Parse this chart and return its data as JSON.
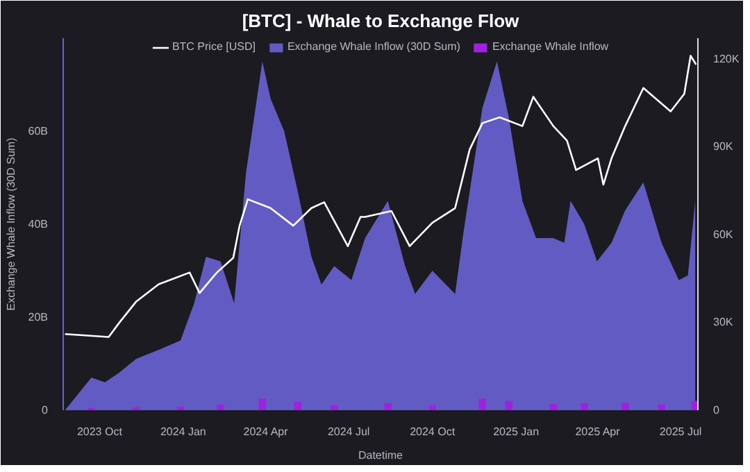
{
  "chart_data": {
    "type": "area",
    "title": "[BTC] - Whale to Exchange Flow",
    "xlabel": "Datetime",
    "ylabel": "Exchange Whale Inflow (30D Sum)",
    "xlim": [
      "2023-08-22",
      "2025-07-20"
    ],
    "xticks": [
      {
        "value": "2023-10-01",
        "label": "2023 Oct"
      },
      {
        "value": "2024-01-01",
        "label": "2024 Jan"
      },
      {
        "value": "2024-04-01",
        "label": "2024 Apr"
      },
      {
        "value": "2024-07-01",
        "label": "2024 Jul"
      },
      {
        "value": "2024-10-01",
        "label": "2024 Oct"
      },
      {
        "value": "2025-01-01",
        "label": "2025 Jan"
      },
      {
        "value": "2025-04-01",
        "label": "2025 Apr"
      },
      {
        "value": "2025-07-01",
        "label": "2025 Jul"
      }
    ],
    "ylim": [
      0,
      80
    ],
    "yticks": [
      0,
      {
        "value": 20,
        "label": "20B"
      },
      {
        "value": 40,
        "label": "40B"
      },
      {
        "value": 60,
        "label": "60B"
      }
    ],
    "y2lim": [
      0,
      127000
    ],
    "y2ticks": [
      0,
      {
        "value": 30000,
        "label": "30K"
      },
      {
        "value": 60000,
        "label": "60K"
      },
      {
        "value": 90000,
        "label": "90K"
      },
      {
        "value": 120000,
        "label": "120K"
      }
    ],
    "grid": false,
    "legend": "top",
    "series": [
      {
        "name": "BTC Price [USD]",
        "type": "line",
        "axis": "y2",
        "color": "#ffffff",
        "x": [
          "2023-08-24",
          "2023-10-11",
          "2023-10-23",
          "2023-11-10",
          "2023-12-05",
          "2024-01-08",
          "2024-01-19",
          "2024-02-07",
          "2024-02-25",
          "2024-03-03",
          "2024-03-12",
          "2024-04-06",
          "2024-05-01",
          "2024-05-21",
          "2024-06-04",
          "2024-06-30",
          "2024-07-14",
          "2024-07-19",
          "2024-08-17",
          "2024-09-06",
          "2024-10-01",
          "2024-10-26",
          "2024-11-11",
          "2024-11-25",
          "2024-12-14",
          "2025-01-08",
          "2025-01-20",
          "2025-02-11",
          "2025-02-26",
          "2025-03-08",
          "2025-04-01",
          "2025-04-07",
          "2025-04-16",
          "2025-05-01",
          "2025-05-21",
          "2025-06-20",
          "2025-07-05",
          "2025-07-12",
          "2025-07-18"
        ],
        "values": [
          26000,
          25000,
          30000,
          37000,
          43000,
          47000,
          40000,
          47000,
          52000,
          63000,
          72000,
          69000,
          63000,
          69000,
          71000,
          56000,
          66000,
          66000,
          68000,
          56000,
          64000,
          69000,
          89000,
          98000,
          100000,
          97000,
          107000,
          97000,
          92000,
          82000,
          86000,
          77000,
          86000,
          97000,
          110000,
          102000,
          108000,
          121000,
          118000
        ]
      },
      {
        "name": "Exchange Whale Inflow (30D Sum)",
        "color": "#6b63d6",
        "x": [
          "2023-08-24",
          "2023-09-22",
          "2023-10-07",
          "2023-10-22",
          "2023-11-10",
          "2023-12-05",
          "2023-12-29",
          "2024-01-13",
          "2024-01-26",
          "2024-02-11",
          "2024-02-26",
          "2024-03-10",
          "2024-03-28",
          "2024-04-06",
          "2024-04-21",
          "2024-05-06",
          "2024-05-21",
          "2024-06-01",
          "2024-06-15",
          "2024-07-04",
          "2024-07-19",
          "2024-08-13",
          "2024-09-01",
          "2024-09-12",
          "2024-10-01",
          "2024-10-26",
          "2024-11-04",
          "2024-11-25",
          "2024-12-11",
          "2024-12-24",
          "2025-01-08",
          "2025-01-23",
          "2025-02-11",
          "2025-02-23",
          "2025-03-02",
          "2025-03-17",
          "2025-03-31",
          "2025-04-16",
          "2025-05-01",
          "2025-05-21",
          "2025-06-10",
          "2025-06-29",
          "2025-07-09",
          "2025-07-17"
        ],
        "values": [
          0,
          7,
          6,
          8,
          11,
          13,
          15,
          23,
          33,
          32,
          23,
          51,
          75,
          67,
          60,
          47,
          33,
          27,
          31,
          28,
          37,
          45,
          31,
          25,
          30,
          25,
          38,
          65,
          75,
          63,
          45,
          37,
          37,
          36,
          45,
          40,
          32,
          36,
          43,
          49,
          36,
          28,
          29,
          45
        ]
      },
      {
        "name": "Exchange Whale Inflow",
        "type": "bar",
        "color": "#a020e0",
        "x": [
          "2023-09-22",
          "2023-11-10",
          "2023-12-29",
          "2024-02-11",
          "2024-03-28",
          "2024-05-06",
          "2024-06-15",
          "2024-08-13",
          "2024-10-01",
          "2024-11-25",
          "2024-12-24",
          "2025-02-11",
          "2025-03-17",
          "2025-05-01",
          "2025-06-10",
          "2025-07-17"
        ],
        "values": [
          0.5,
          0.6,
          0.8,
          1.2,
          2.5,
          1.8,
          1.0,
          1.5,
          1.0,
          2.5,
          2.0,
          1.3,
          1.5,
          1.6,
          1.2,
          2.0
        ]
      }
    ]
  }
}
